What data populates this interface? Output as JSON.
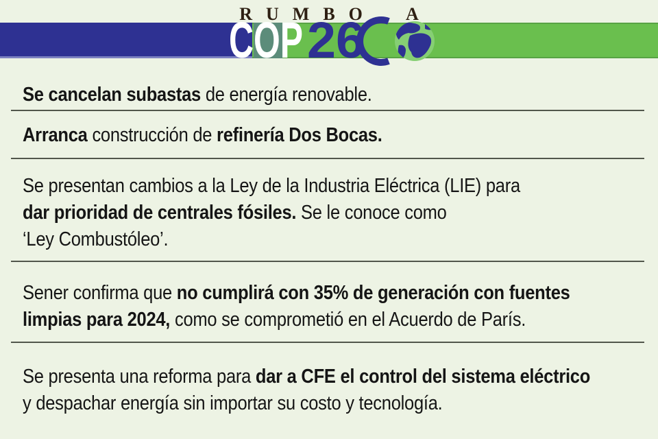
{
  "header": {
    "kicker": "RUMBO A",
    "logo": {
      "cop": "COP",
      "num": "26"
    },
    "colors": {
      "banner_blue": "#2e3192",
      "banner_green": "#6abf4e",
      "o_patch_teal": "#5c8c7a",
      "globe_green": "#86cf74",
      "globe_land_blue": "#2e3192"
    }
  },
  "items": [
    {
      "lines": [
        [
          {
            "t": "Se cancelan subastas",
            "b": true
          },
          {
            "t": " de energía renovable.",
            "b": false
          }
        ]
      ]
    },
    {
      "lines": [
        [
          {
            "t": "Arranca",
            "b": true
          },
          {
            "t": " construcción de ",
            "b": false
          },
          {
            "t": "refinería Dos Bocas.",
            "b": true
          }
        ]
      ]
    },
    {
      "lines": [
        [
          {
            "t": "Se presentan cambios a la Ley de la Industria Eléctrica (LIE) para",
            "b": false
          }
        ],
        [
          {
            "t": "dar prioridad de centrales fósiles.",
            "b": true
          },
          {
            "t": " Se le conoce como",
            "b": false
          }
        ],
        [
          {
            "t": "‘Ley Combustóleo’.",
            "b": false
          }
        ]
      ]
    },
    {
      "lines": [
        [
          {
            "t": "Sener confirma que ",
            "b": false
          },
          {
            "t": "no cumplirá con 35% de generación con fuentes",
            "b": true
          }
        ],
        [
          {
            "t": "limpias para 2024,",
            "b": true
          },
          {
            "t": " como se comprometió en el Acuerdo de París.",
            "b": false
          }
        ]
      ]
    },
    {
      "lines": [
        [
          {
            "t": "Se presenta una reforma para ",
            "b": false
          },
          {
            "t": "dar a CFE el control del sistema eléctrico",
            "b": true
          }
        ],
        [
          {
            "t": "y despachar energía sin importar su costo y tecnología.",
            "b": false
          }
        ]
      ]
    }
  ]
}
